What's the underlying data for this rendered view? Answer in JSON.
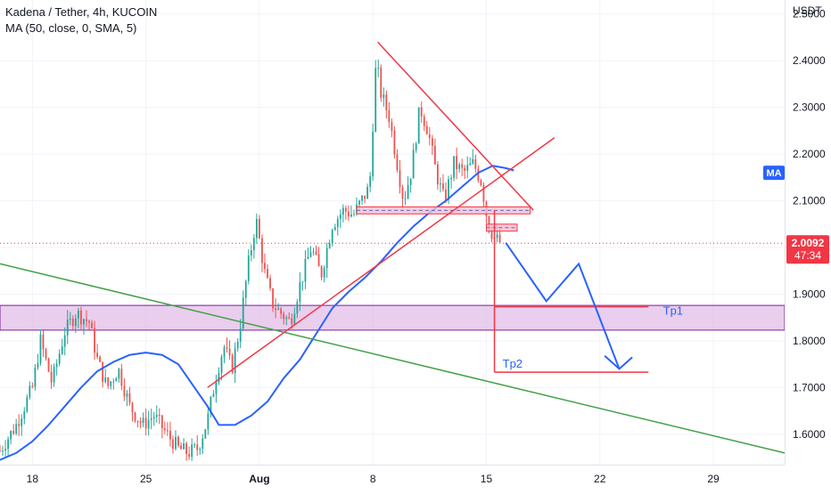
{
  "header": {
    "symbol_title": "Kadena / Tether, 4h, KUCOIN",
    "indicator": "MA (50, close, 0, SMA, 5)"
  },
  "chart_data": {
    "type": "candlestick",
    "currency_label": "USDT",
    "ylim": [
      1.535,
      2.53
    ],
    "y_ticks": [
      1.6,
      1.7,
      1.8,
      1.9,
      2.0,
      2.1,
      2.2,
      2.3,
      2.4,
      2.5
    ],
    "y_tick_labels": [
      "1.6000",
      "1.7000",
      "1.8000",
      "1.9000",
      "2.0000",
      "2.1000",
      "2.2000",
      "2.3000",
      "2.4000",
      "2.5000"
    ],
    "x_tick_labels": [
      "18",
      "25",
      "Aug",
      "8",
      "15",
      "22",
      "29"
    ],
    "x_ticks_day": [
      18,
      25,
      32,
      39,
      46,
      53,
      60
    ],
    "xlim_day": [
      16.0,
      64.4
    ],
    "current_price": "2.0092",
    "countdown": "47:34",
    "current_price_value": 2.0092,
    "ma_tag": "MA",
    "ma_tag_value": 2.16,
    "colors": {
      "up": "#26a69a",
      "down": "#ef5350",
      "ma": "#2962ff",
      "price_tag": "#f23645",
      "support_zone": "#e1bee7",
      "support_zone_border": "#7b1fa2",
      "trend_red": "#f23645",
      "trend_green": "#43a047",
      "projection": "#2962ff"
    },
    "price_path": [
      [
        16.0,
        1.565
      ],
      [
        17.0,
        1.62
      ],
      [
        18.0,
        1.7
      ],
      [
        18.5,
        1.8
      ],
      [
        19.2,
        1.71
      ],
      [
        20.0,
        1.82
      ],
      [
        20.7,
        1.86
      ],
      [
        21.5,
        1.84
      ],
      [
        22.0,
        1.76
      ],
      [
        22.6,
        1.7
      ],
      [
        23.3,
        1.74
      ],
      [
        24.0,
        1.66
      ],
      [
        24.8,
        1.62
      ],
      [
        25.5,
        1.64
      ],
      [
        26.3,
        1.6
      ],
      [
        27.0,
        1.57
      ],
      [
        27.6,
        1.56
      ],
      [
        28.2,
        1.57
      ],
      [
        28.8,
        1.63
      ],
      [
        29.3,
        1.72
      ],
      [
        29.8,
        1.79
      ],
      [
        30.3,
        1.74
      ],
      [
        30.8,
        1.83
      ],
      [
        31.3,
        1.96
      ],
      [
        31.8,
        2.06
      ],
      [
        32.3,
        1.95
      ],
      [
        32.8,
        1.88
      ],
      [
        33.3,
        1.86
      ],
      [
        33.9,
        1.84
      ],
      [
        34.5,
        1.92
      ],
      [
        35.2,
        2.0
      ],
      [
        35.8,
        1.94
      ],
      [
        36.5,
        2.05
      ],
      [
        37.2,
        2.08
      ],
      [
        37.8,
        2.07
      ],
      [
        38.3,
        2.1
      ],
      [
        38.8,
        2.13
      ],
      [
        39.2,
        2.4
      ],
      [
        39.5,
        2.33
      ],
      [
        40.0,
        2.28
      ],
      [
        40.4,
        2.2
      ],
      [
        40.9,
        2.1
      ],
      [
        41.4,
        2.17
      ],
      [
        41.9,
        2.3
      ],
      [
        42.4,
        2.25
      ],
      [
        42.9,
        2.16
      ],
      [
        43.4,
        2.1
      ],
      [
        44.0,
        2.18
      ],
      [
        44.6,
        2.16
      ],
      [
        45.2,
        2.18
      ],
      [
        45.7,
        2.14
      ],
      [
        46.1,
        2.05
      ],
      [
        46.5,
        2.02
      ],
      [
        46.9,
        2.01
      ]
    ],
    "ma_path": [
      [
        16.0,
        1.545
      ],
      [
        17.0,
        1.56
      ],
      [
        18.0,
        1.585
      ],
      [
        19.0,
        1.62
      ],
      [
        20.0,
        1.66
      ],
      [
        21.0,
        1.7
      ],
      [
        22.0,
        1.735
      ],
      [
        23.0,
        1.755
      ],
      [
        24.0,
        1.77
      ],
      [
        25.0,
        1.775
      ],
      [
        26.0,
        1.77
      ],
      [
        27.0,
        1.75
      ],
      [
        28.0,
        1.7
      ],
      [
        28.8,
        1.66
      ],
      [
        29.5,
        1.62
      ],
      [
        30.5,
        1.62
      ],
      [
        31.5,
        1.64
      ],
      [
        32.5,
        1.67
      ],
      [
        33.5,
        1.72
      ],
      [
        34.5,
        1.76
      ],
      [
        35.5,
        1.815
      ],
      [
        36.5,
        1.87
      ],
      [
        37.5,
        1.905
      ],
      [
        38.5,
        1.935
      ],
      [
        39.5,
        1.97
      ],
      [
        40.5,
        2.01
      ],
      [
        41.5,
        2.045
      ],
      [
        42.5,
        2.075
      ],
      [
        43.5,
        2.1
      ],
      [
        44.5,
        2.13
      ],
      [
        45.5,
        2.16
      ],
      [
        46.4,
        2.175
      ],
      [
        47.2,
        2.17
      ],
      [
        47.7,
        2.165
      ]
    ],
    "annotations": {
      "triangle_upper": [
        [
          39.3,
          2.44
        ],
        [
          48.9,
          2.08
        ]
      ],
      "triangle_lower": [
        [
          28.8,
          1.7
        ],
        [
          50.2,
          2.235
        ]
      ],
      "long_green_trend": [
        [
          16.0,
          1.965
        ],
        [
          64.4,
          1.56
        ]
      ],
      "support_zone": [
        1.823,
        1.876
      ],
      "resistance_zone": [
        2.072,
        2.087
      ],
      "small_zone": [
        2.035,
        2.05
      ],
      "vertical_drop": [
        [
          46.5,
          2.08
        ],
        [
          46.5,
          1.733
        ]
      ],
      "tp1_line": [
        [
          46.5,
          1.873
        ],
        [
          56.0,
          1.873
        ]
      ],
      "tp2_line": [
        [
          46.5,
          1.733
        ],
        [
          56.0,
          1.733
        ]
      ],
      "projection_path": [
        [
          47.2,
          2.01
        ],
        [
          49.7,
          1.885
        ],
        [
          51.7,
          1.965
        ],
        [
          54.2,
          1.74
        ],
        [
          55.0,
          1.765
        ]
      ],
      "tp1_label": "Tp1",
      "tp2_label": "Tp2"
    }
  }
}
